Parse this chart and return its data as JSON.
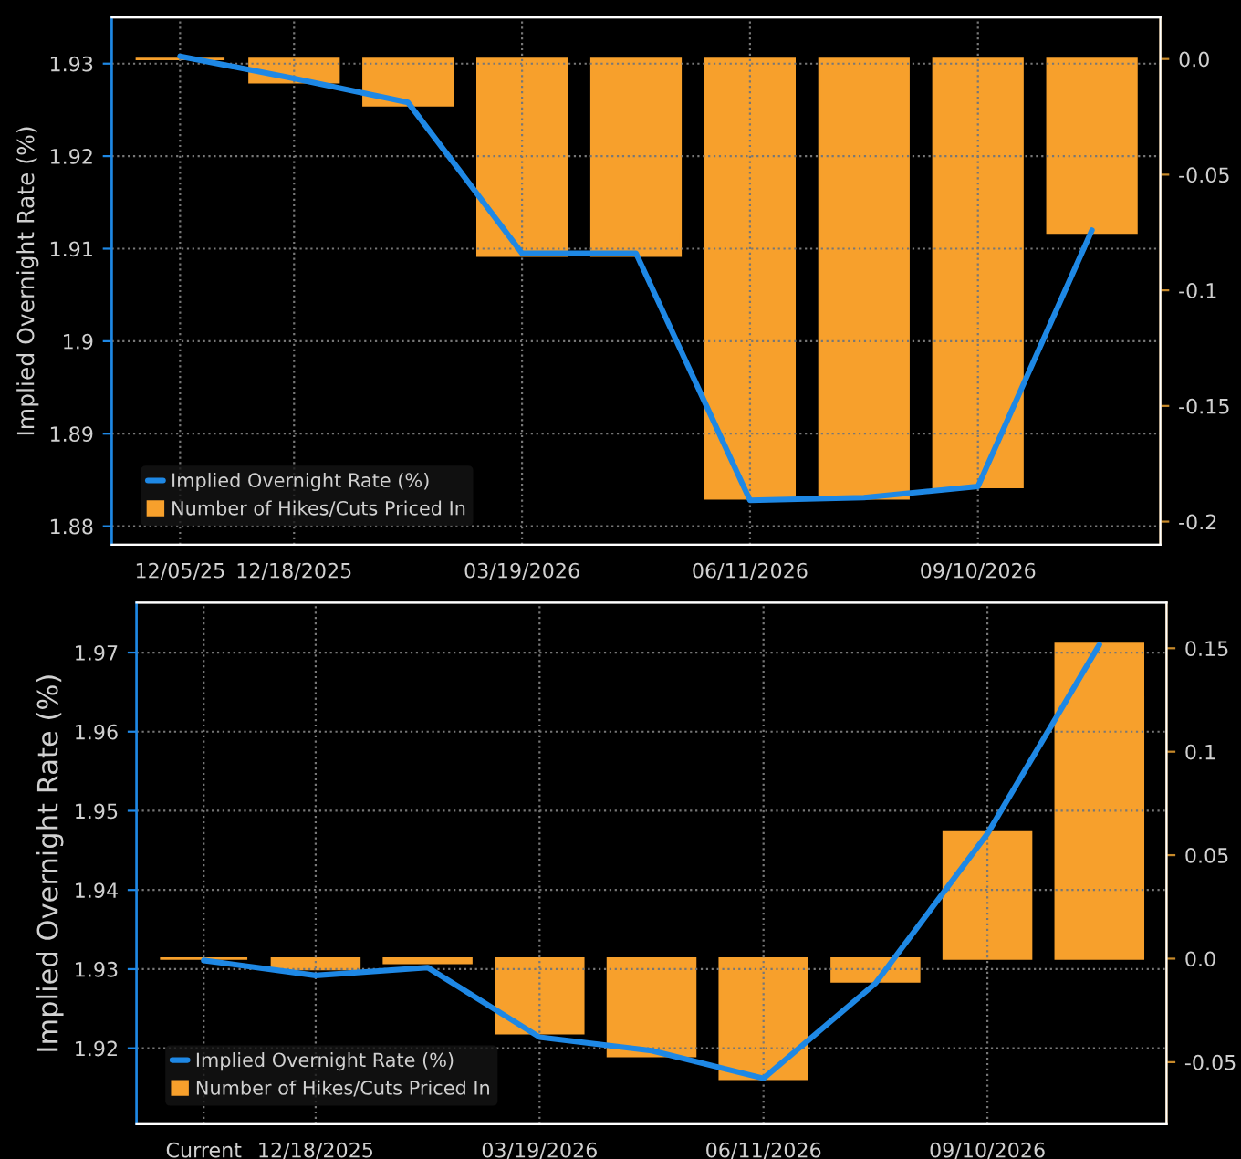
{
  "chart_data": [
    {
      "type": "bar",
      "ylabel": "Implied Overnight Rate (%)",
      "categories": [
        "12/05/25",
        "12/18/2025",
        null,
        "03/19/2026",
        null,
        "06/11/2026",
        null,
        "09/10/2026",
        null
      ],
      "series": [
        {
          "name": "Implied Overnight Rate (%)",
          "type": "line",
          "color": "#1e88e5",
          "values": [
            1.9308,
            1.9284,
            1.9258,
            1.9095,
            1.9095,
            1.8828,
            1.8831,
            1.8843,
            1.912
          ]
        },
        {
          "name": "Number of Hikes/Cuts Priced In",
          "axis": "y2",
          "color": "#f7a02c",
          "values": [
            0,
            -0.01,
            -0.02,
            -0.085,
            -0.085,
            -0.19,
            -0.19,
            -0.185,
            -0.075
          ]
        }
      ],
      "ylim": [
        1.878,
        1.935
      ],
      "yticks": [
        1.88,
        1.89,
        1.9,
        1.91,
        1.92,
        1.93
      ],
      "y2lim": [
        -0.21,
        0.018
      ],
      "y2ticks": [
        {
          "value": 0,
          "label": "0.0"
        },
        -0.05,
        -0.1,
        -0.15,
        -0.2
      ],
      "grid": true,
      "legend": "bottom left"
    },
    {
      "type": "bar",
      "ylabel": "Implied Overnight Rate (%)",
      "categories": [
        "Current",
        "12/18/2025",
        null,
        "03/19/2026",
        null,
        "06/11/2026",
        null,
        "09/10/2026",
        null
      ],
      "series": [
        {
          "name": "Implied Overnight Rate (%)",
          "type": "line",
          "color": "#1e88e5",
          "values": [
            1.9311,
            1.9292,
            1.9302,
            1.9214,
            1.9197,
            1.9162,
            1.9282,
            1.9471,
            1.971
          ]
        },
        {
          "name": "Number of Hikes/Cuts Priced In",
          "axis": "y2",
          "color": "#f7a02c",
          "values": [
            0,
            -0.005,
            -0.002,
            -0.036,
            -0.047,
            -0.058,
            -0.011,
            0.061,
            0.152
          ]
        }
      ],
      "ylim": [
        1.9104,
        1.9763
      ],
      "yticks": [
        1.92,
        1.93,
        1.94,
        1.95,
        1.96,
        1.97
      ],
      "y2lim": [
        -0.08,
        0.172
      ],
      "y2ticks": [
        -0.05,
        {
          "value": 0,
          "label": "0.0"
        },
        0.05,
        0.1,
        0.15
      ],
      "grid": true,
      "legend": "bottom left"
    }
  ]
}
